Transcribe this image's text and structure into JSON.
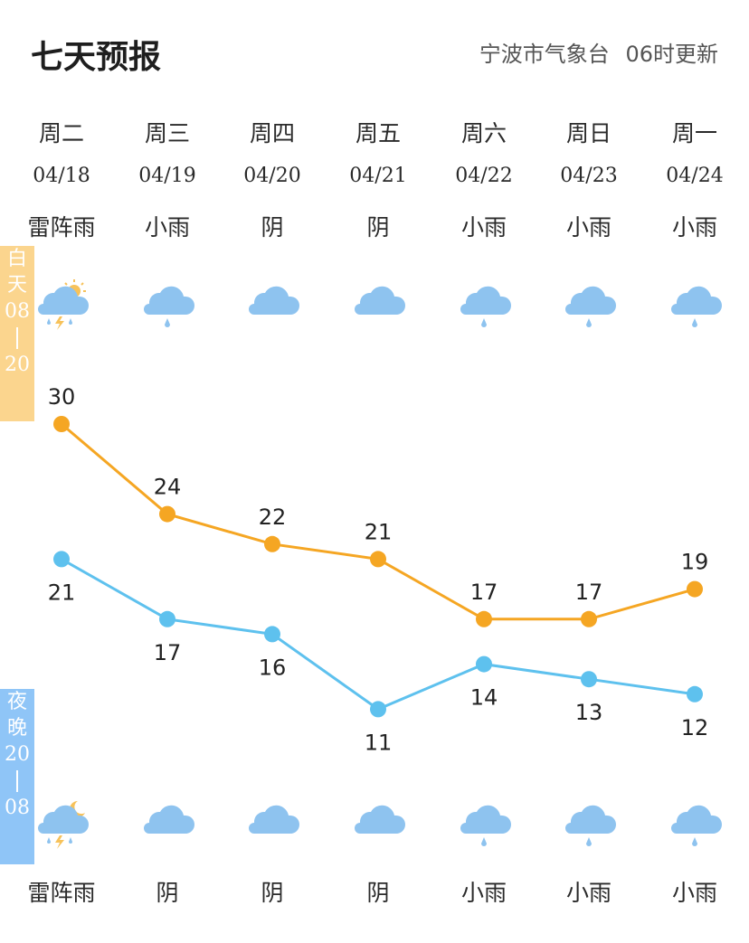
{
  "header": {
    "title": "七天预报",
    "source": "宁波市气象台",
    "update": "06时更新"
  },
  "side_tags": {
    "day": {
      "chars": [
        "白",
        "天",
        "08",
        "20"
      ]
    },
    "night": {
      "chars": [
        "夜",
        "晚",
        "20",
        "08"
      ]
    }
  },
  "colors": {
    "day_line": "#f5a623",
    "night_line": "#5ec1ee",
    "cloud": "#8ec3ef",
    "sun": "#f7c25a"
  },
  "days": [
    {
      "week": "周二",
      "date": "04/18",
      "day_desc": "雷阵雨",
      "night_desc": "雷阵雨",
      "day_icon": "thunderstorm-sun-icon",
      "night_icon": "thunderstorm-moon-icon"
    },
    {
      "week": "周三",
      "date": "04/19",
      "day_desc": "小雨",
      "night_desc": "阴",
      "day_icon": "light-rain-icon",
      "night_icon": "overcast-icon"
    },
    {
      "week": "周四",
      "date": "04/20",
      "day_desc": "阴",
      "night_desc": "阴",
      "day_icon": "overcast-icon",
      "night_icon": "overcast-icon"
    },
    {
      "week": "周五",
      "date": "04/21",
      "day_desc": "阴",
      "night_desc": "阴",
      "day_icon": "overcast-icon",
      "night_icon": "overcast-icon"
    },
    {
      "week": "周六",
      "date": "04/22",
      "day_desc": "小雨",
      "night_desc": "小雨",
      "day_icon": "light-rain-icon",
      "night_icon": "light-rain-icon"
    },
    {
      "week": "周日",
      "date": "04/23",
      "day_desc": "小雨",
      "night_desc": "小雨",
      "day_icon": "light-rain-icon",
      "night_icon": "light-rain-icon"
    },
    {
      "week": "周一",
      "date": "04/24",
      "day_desc": "小雨",
      "night_desc": "小雨",
      "day_icon": "light-rain-icon",
      "night_icon": "light-rain-icon"
    }
  ],
  "chart_data": {
    "type": "line",
    "categories": [
      "04/18",
      "04/19",
      "04/20",
      "04/21",
      "04/22",
      "04/23",
      "04/24"
    ],
    "series": [
      {
        "values": [
          30,
          24,
          22,
          21,
          17,
          17,
          19
        ]
      },
      {
        "values": [
          21,
          17,
          16,
          11,
          14,
          13,
          12
        ]
      }
    ]
  }
}
